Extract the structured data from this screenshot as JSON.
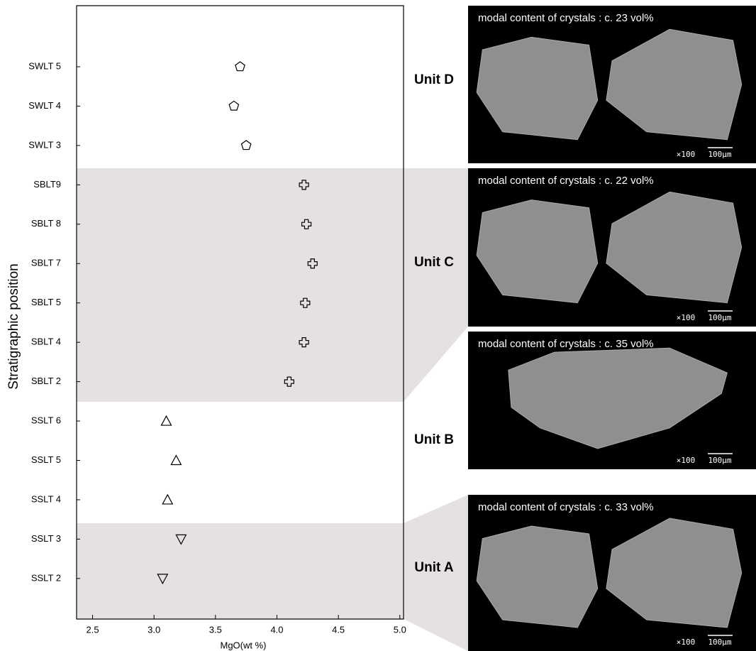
{
  "chart_data": {
    "type": "scatter",
    "y_label": "Stratigraphic position",
    "x_label": "MgO(wt %)",
    "categories": [
      "SWLT 5",
      "SWLT 4",
      "SWLT 3",
      "SBLT9",
      "SBLT 8",
      "SBLT 7",
      "SBLT 5",
      "SBLT 4",
      "SBLT 2",
      "SSLT 6",
      "SSLT 5",
      "SSLT 4",
      "SSLT 3",
      "SSLT 2"
    ],
    "values": [
      3.7,
      3.65,
      3.75,
      4.22,
      4.24,
      4.29,
      4.23,
      4.22,
      4.1,
      3.1,
      3.18,
      3.11,
      3.22,
      3.07
    ],
    "markers": [
      "pentagon",
      "pentagon",
      "pentagon",
      "cross",
      "cross",
      "cross",
      "cross",
      "cross",
      "cross",
      "triangle-up",
      "triangle-up",
      "triangle-up",
      "triangle-down",
      "triangle-down"
    ],
    "xlim": [
      2.37,
      5.03
    ],
    "xticks": [
      2.5,
      {
        "value": 3,
        "label": "3.0"
      },
      3.5,
      {
        "value": 4,
        "label": "4.0"
      },
      4.5,
      {
        "value": 5,
        "label": "5.0"
      }
    ],
    "color": "#000000",
    "units": [
      {
        "label": "Unit D",
        "caption": "modal content of crystals : c. 23 vol%",
        "magnification": "×100",
        "scale": "100μm"
      },
      {
        "label": "Unit C",
        "caption": "modal content of crystals : c. 22 vol%",
        "magnification": "×100",
        "scale": "100μm"
      },
      {
        "label": "Unit B",
        "caption": "modal content of crystals : c. 35 vol%",
        "magnification": "×100",
        "scale": "100μm"
      },
      {
        "label": "Unit A",
        "caption": "modal content of crystals : c. 33 vol%",
        "magnification": "×100",
        "scale": "100μm"
      }
    ]
  }
}
